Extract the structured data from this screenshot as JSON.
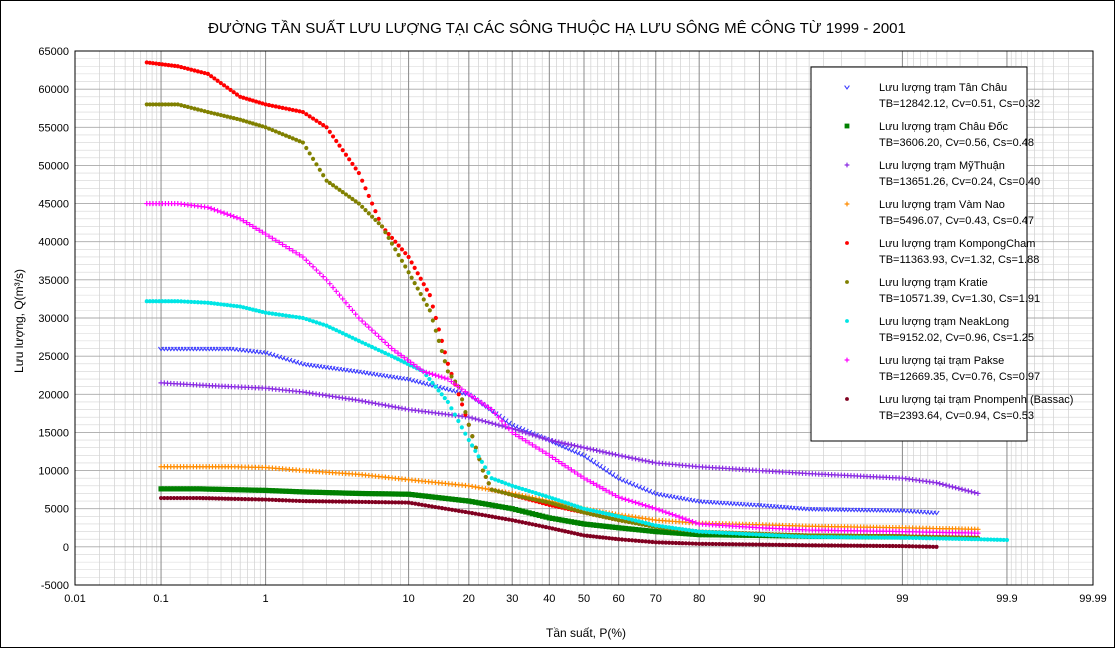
{
  "chart_data": {
    "type": "scatter",
    "title": "ĐƯỜNG TẦN SUẤT LƯU LƯỢNG TẠI CÁC SÔNG THUỘC HẠ LƯU SÔNG MÊ  CÔNG TỪ 1999 - 2001",
    "xlabel": "Tần suất, P(%)",
    "ylabel": "Lưu lượng, Q(m³/s)",
    "x_scale": "normal-probability",
    "xlim": [
      0.01,
      99.99
    ],
    "ylim": [
      -5000,
      65000
    ],
    "x_ticks": [
      "0.01",
      "0.1",
      "1",
      "10",
      "20",
      "30",
      "40",
      "50",
      "60",
      "70",
      "80",
      "90",
      "99",
      "99.9",
      "99.99"
    ],
    "y_ticks": [
      "65000",
      "60000",
      "55000",
      "50000",
      "45000",
      "40000",
      "35000",
      "30000",
      "25000",
      "20000",
      "15000",
      "10000",
      "5000",
      "0",
      "-5000"
    ],
    "grid": true,
    "legend_position": "right",
    "series": [
      {
        "name": "Lưu lượng trạm Tân Châu",
        "stats": "TB=12842.12, Cv=0.51, Cs=0.32",
        "color": "#3b3bff",
        "marker": "vee",
        "x": [
          0.1,
          0.25,
          0.5,
          1,
          2,
          5,
          10,
          20,
          30,
          40,
          50,
          60,
          70,
          80,
          90,
          95,
          99,
          99.5
        ],
        "y": [
          26000,
          26000,
          26000,
          25500,
          24000,
          23000,
          22000,
          20000,
          16000,
          14000,
          12000,
          9000,
          7000,
          6000,
          5500,
          5000,
          4800,
          4500
        ]
      },
      {
        "name": "Lưu lượng trạm Châu Đốc",
        "stats": "TB=3606.20, Cv=0.56, Cs=0.48",
        "color": "#008000",
        "marker": "square",
        "x": [
          0.1,
          0.25,
          0.5,
          1,
          2,
          5,
          10,
          20,
          30,
          40,
          50,
          60,
          70,
          80,
          90,
          95,
          99
        ],
        "y": [
          7600,
          7600,
          7500,
          7400,
          7200,
          7000,
          6900,
          6000,
          5000,
          3800,
          3000,
          2500,
          2000,
          1600,
          1500,
          1400,
          1300
        ]
      },
      {
        "name": "Lưu lượng trạm MỹThuận",
        "stats": "TB=13651.26, Cv=0.24, Cs=0.40",
        "color": "#8a2be2",
        "marker": "plus",
        "x": [
          0.1,
          0.25,
          0.5,
          1,
          2,
          5,
          10,
          20,
          30,
          40,
          50,
          60,
          70,
          80,
          90,
          95,
          99,
          99.5,
          99.8
        ],
        "y": [
          21500,
          21200,
          21000,
          20800,
          20300,
          19200,
          18000,
          17000,
          15500,
          14000,
          13000,
          12000,
          11000,
          10500,
          10000,
          9600,
          9000,
          8400,
          7000
        ]
      },
      {
        "name": "Lưu lượng trạm Vàm Nao",
        "stats": "TB=5496.07, Cv=0.43, Cs=0.47",
        "color": "#ff8c00",
        "marker": "plus",
        "x": [
          0.1,
          0.25,
          0.5,
          1,
          2,
          5,
          10,
          20,
          30,
          40,
          50,
          60,
          70,
          80,
          90,
          95,
          99,
          99.5,
          99.8
        ],
        "y": [
          10500,
          10500,
          10500,
          10400,
          10000,
          9500,
          8800,
          8000,
          7000,
          6000,
          5000,
          4200,
          3500,
          3100,
          2900,
          2700,
          2500,
          2400,
          2300
        ]
      },
      {
        "name": "Lưu lượng trạm KompongCham",
        "stats": "TB=11363.93, Cv=1.32, Cs=1.88",
        "color": "#ff0000",
        "marker": "dot",
        "x": [
          0.07,
          0.15,
          0.3,
          0.6,
          1,
          2,
          3,
          5,
          7,
          10,
          13,
          16,
          18,
          20,
          23,
          25,
          30,
          40,
          50,
          60,
          70,
          80,
          90,
          95,
          99,
          99.5,
          99.8
        ],
        "y": [
          63500,
          63000,
          62000,
          59000,
          58000,
          57000,
          55000,
          49000,
          42000,
          38000,
          33000,
          24000,
          20000,
          16000,
          10000,
          7500,
          6800,
          5500,
          4500,
          3500,
          2700,
          2000,
          1700,
          1500,
          1400,
          1300,
          1200
        ]
      },
      {
        "name": "Lưu lượng trạm Kratie",
        "stats": "TB=10571.39, Cv=1.30, Cs=1.91",
        "color": "#808000",
        "marker": "dot",
        "x": [
          0.07,
          0.15,
          0.3,
          0.6,
          1,
          2,
          3,
          5,
          7,
          10,
          13,
          16,
          18,
          20,
          23,
          25,
          30,
          40,
          50,
          60,
          70,
          80,
          90,
          95,
          99,
          99.5,
          99.8
        ],
        "y": [
          58000,
          58000,
          57000,
          56000,
          55000,
          53000,
          48000,
          45000,
          42000,
          36000,
          31000,
          23000,
          21000,
          16000,
          10000,
          7500,
          6800,
          5800,
          4500,
          3500,
          2600,
          2000,
          1700,
          1500,
          1400,
          1300,
          1200
        ]
      },
      {
        "name": "Lưu lượng trạm NeakLong",
        "stats": "TB=9152.02, Cv=0.96, Cs=1.25",
        "color": "#00e5e5",
        "marker": "dot",
        "x": [
          0.07,
          0.15,
          0.3,
          0.6,
          1,
          2,
          3,
          5,
          8,
          12,
          16,
          20,
          25,
          30,
          40,
          50,
          60,
          70,
          80,
          90,
          95,
          99,
          99.5,
          99.8,
          99.9
        ],
        "y": [
          32200,
          32200,
          32000,
          31500,
          30700,
          30000,
          29000,
          27000,
          25000,
          23000,
          19000,
          14000,
          9000,
          8000,
          6500,
          5000,
          4000,
          2800,
          2000,
          1600,
          1300,
          1200,
          1100,
          1000,
          900
        ]
      },
      {
        "name": "Lưu lượng tại trạm Pakse",
        "stats": "TB=12669.35, Cv=0.76, Cs=0.97",
        "color": "#ff00ff",
        "marker": "plus",
        "x": [
          0.07,
          0.15,
          0.3,
          0.6,
          1,
          2,
          3,
          5,
          8,
          12,
          16,
          20,
          25,
          30,
          40,
          50,
          60,
          70,
          80,
          90,
          95,
          99,
          99.5,
          99.8
        ],
        "y": [
          45000,
          45000,
          44500,
          43000,
          41000,
          38000,
          35000,
          30000,
          26000,
          23000,
          22000,
          20000,
          18000,
          15000,
          12000,
          9000,
          6500,
          5000,
          3000,
          2500,
          2200,
          2000,
          1900,
          1800
        ]
      },
      {
        "name": "Lưu lượng tại trạm Pnompenh (Bassac)",
        "stats": "TB=2393.64, Cv=0.94, Cs=0.53",
        "color": "#800020",
        "marker": "dot",
        "x": [
          0.1,
          0.25,
          0.5,
          1,
          2,
          5,
          10,
          20,
          30,
          40,
          50,
          60,
          70,
          80,
          90,
          95,
          99,
          99.5
        ],
        "y": [
          6400,
          6400,
          6300,
          6200,
          6000,
          5900,
          5800,
          4500,
          3500,
          2500,
          1500,
          1000,
          600,
          400,
          300,
          200,
          100,
          0
        ]
      }
    ]
  }
}
